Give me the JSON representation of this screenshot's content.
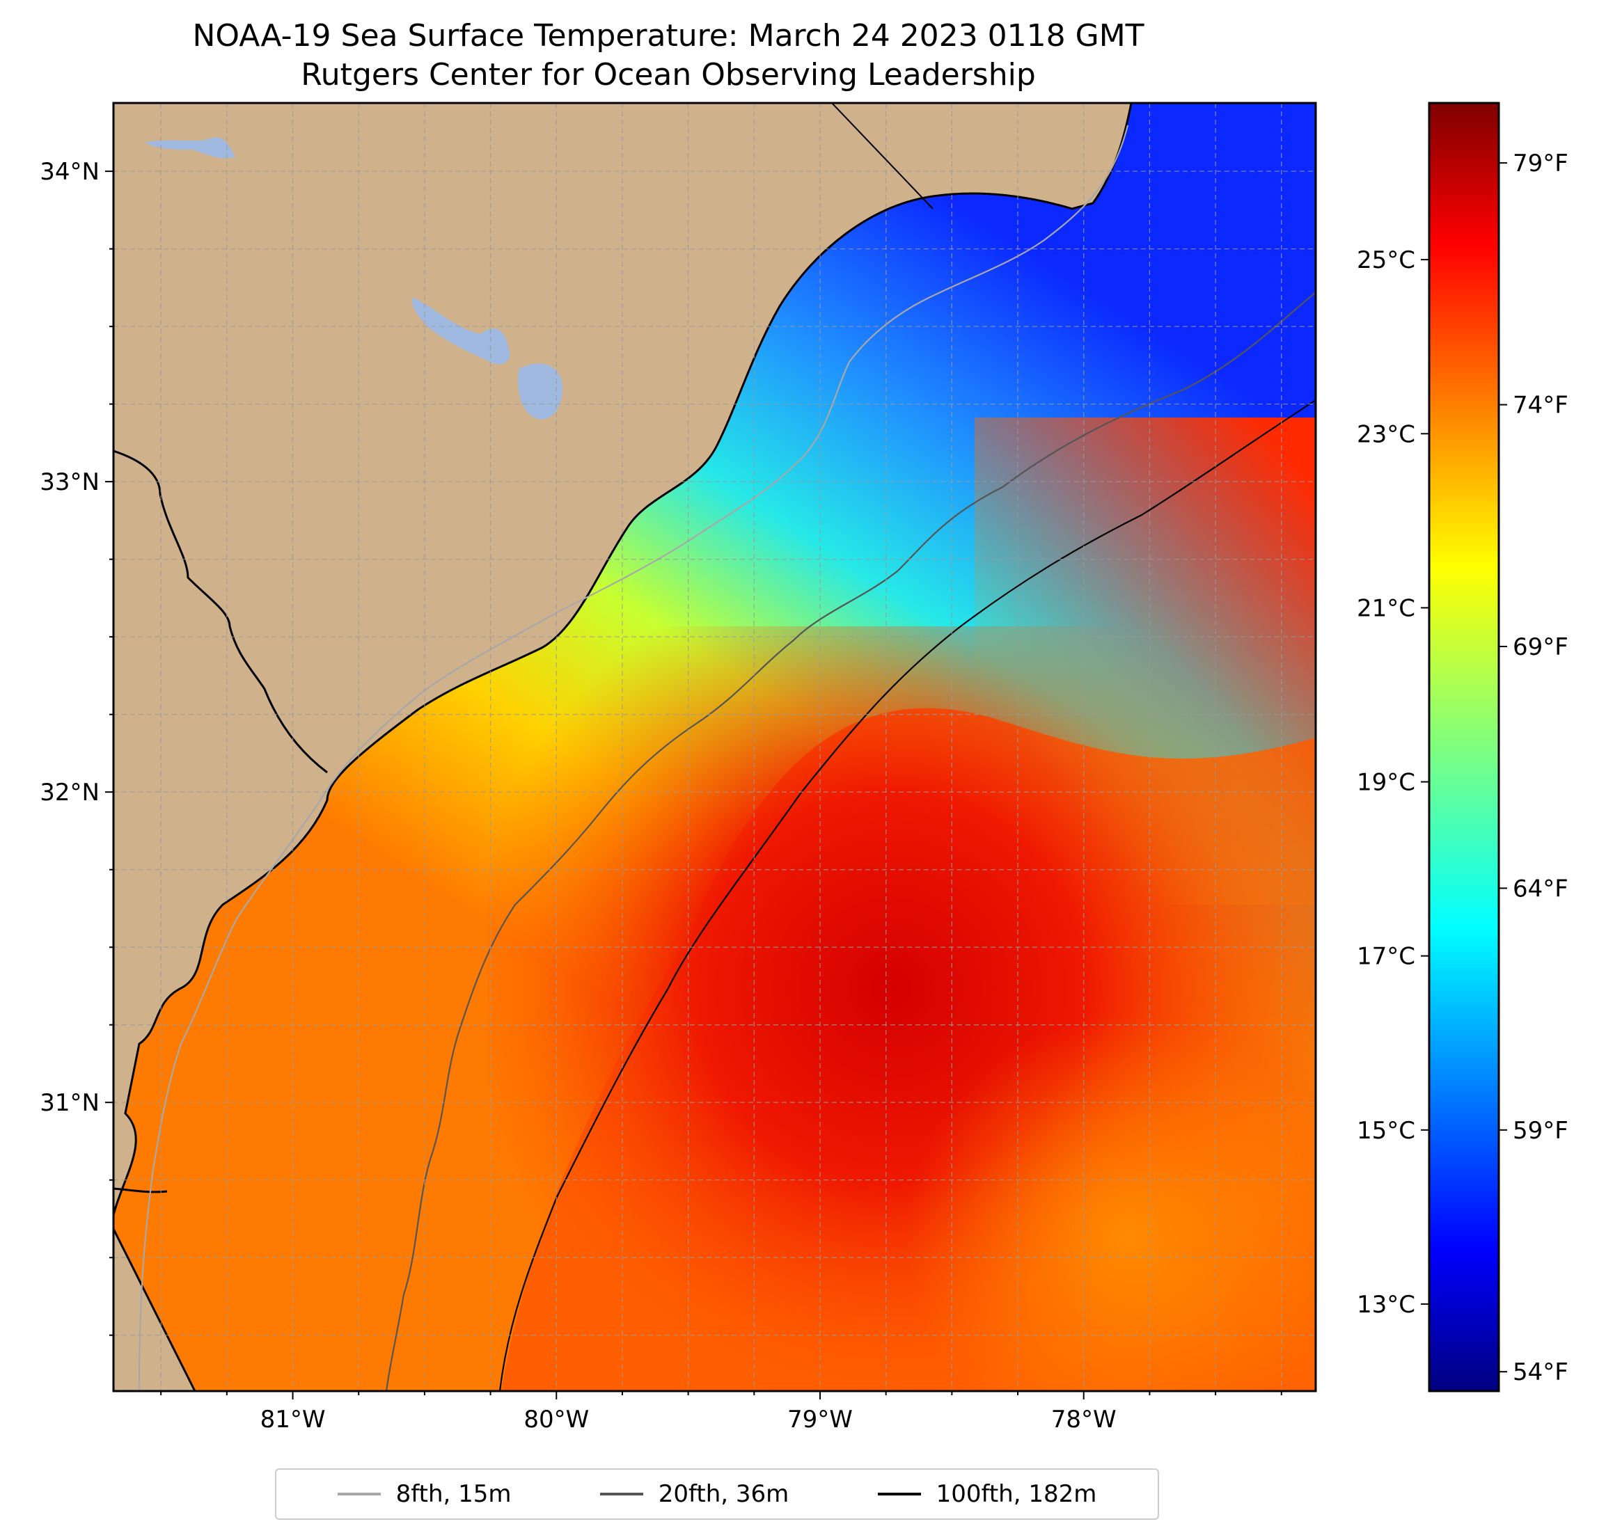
{
  "title": {
    "line1": "NOAA-19 Sea Surface Temperature: March 24 2023 0118 GMT",
    "line2": "Rutgers Center for Ocean Observing Leadership"
  },
  "colors": {
    "land": "#cfb18c",
    "lakes": "#9fb8e0",
    "coastline": "#000000",
    "gridline": "#9a9a9a",
    "contour_8fth": "#a8a8a8",
    "contour_20fth": "#555555",
    "contour_100fth": "#000000",
    "colormap": "jet"
  },
  "map": {
    "projection": "lat-lon",
    "lon_range": [
      -81.68,
      -77.12
    ],
    "lat_range": [
      30.07,
      34.22
    ],
    "lon_ticks": [
      "81°W",
      "80°W",
      "79°W",
      "78°W"
    ],
    "lon_tick_values": [
      -81,
      -80,
      -79,
      -78
    ],
    "lat_ticks": [
      "34°N",
      "33°N",
      "32°N",
      "31°N"
    ],
    "lat_tick_values": [
      34,
      33,
      32,
      31
    ],
    "gridlines": true,
    "gridline_style": "dashed"
  },
  "colorbar": {
    "range_c": [
      12.0,
      26.8
    ],
    "celsius_labels": [
      "25°C",
      "23°C",
      "21°C",
      "19°C",
      "17°C",
      "15°C",
      "13°C"
    ],
    "celsius_values": [
      25,
      23,
      21,
      19,
      17,
      15,
      13
    ],
    "fahrenheit_labels": [
      "79°F",
      "74°F",
      "69°F",
      "64°F",
      "59°F",
      "54°F"
    ],
    "fahrenheit_values": [
      79,
      74,
      69,
      64,
      59,
      54
    ]
  },
  "legend": {
    "placement": "bottom-center",
    "items": [
      {
        "label": "8fth, 15m",
        "color": "#a8a8a8"
      },
      {
        "label": "20fth, 36m",
        "color": "#555555"
      },
      {
        "label": "100fth, 182m",
        "color": "#000000"
      }
    ]
  }
}
